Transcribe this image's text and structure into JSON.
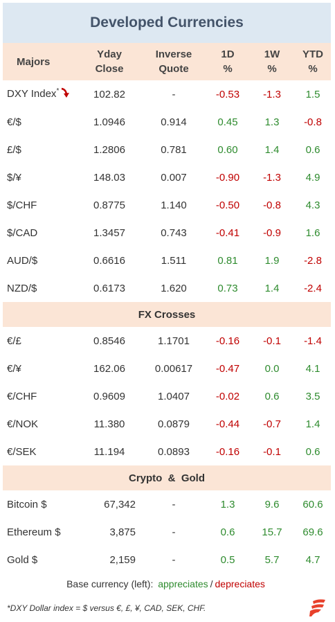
{
  "title": "Developed Currencies",
  "headers": {
    "majors": "Majors",
    "yday_1": "Yday",
    "yday_2": "Close",
    "inverse_1": "Inverse",
    "inverse_2": "Quote",
    "d1_1": "1D",
    "d1_2": "%",
    "w1_1": "1W",
    "w1_2": "%",
    "ytd_1": "YTD",
    "ytd_2": "%"
  },
  "majors": [
    {
      "name": "DXY Index",
      "close": "102.82",
      "inverse": "-",
      "d1": "-0.53",
      "w1": "-1.3",
      "ytd": "1.5"
    },
    {
      "name": "€/$",
      "close": "1.0946",
      "inverse": "0.914",
      "d1": "0.45",
      "w1": "1.3",
      "ytd": "-0.8"
    },
    {
      "name": "£/$",
      "close": "1.2806",
      "inverse": "0.781",
      "d1": "0.60",
      "w1": "1.4",
      "ytd": "0.6"
    },
    {
      "name": "$/¥",
      "close": "148.03",
      "inverse": "0.007",
      "d1": "-0.90",
      "w1": "-1.3",
      "ytd": "4.9"
    },
    {
      "name": "$/CHF",
      "close": "0.8775",
      "inverse": "1.140",
      "d1": "-0.50",
      "w1": "-0.8",
      "ytd": "4.3"
    },
    {
      "name": "$/CAD",
      "close": "1.3457",
      "inverse": "0.743",
      "d1": "-0.41",
      "w1": "-0.9",
      "ytd": "1.6"
    },
    {
      "name": "AUD/$",
      "close": "0.6616",
      "inverse": "1.511",
      "d1": "0.81",
      "w1": "1.9",
      "ytd": "-2.8"
    },
    {
      "name": "NZD/$",
      "close": "0.6173",
      "inverse": "1.620",
      "d1": "0.73",
      "w1": "1.4",
      "ytd": "-2.4"
    }
  ],
  "fx_title": "FX Crosses",
  "fx": [
    {
      "name": "€/£",
      "close": "0.8546",
      "inverse": "1.1701",
      "d1": "-0.16",
      "w1": "-0.1",
      "ytd": "-1.4"
    },
    {
      "name": "€/¥",
      "close": "162.06",
      "inverse": "0.00617",
      "d1": "-0.47",
      "w1": "0.0",
      "ytd": "4.1"
    },
    {
      "name": "€/CHF",
      "close": "0.9609",
      "inverse": "1.0407",
      "d1": "-0.02",
      "w1": "0.6",
      "ytd": "3.5"
    },
    {
      "name": "€/NOK",
      "close": "11.380",
      "inverse": "0.0879",
      "d1": "-0.44",
      "w1": "-0.7",
      "ytd": "1.4"
    },
    {
      "name": "€/SEK",
      "close": "11.194",
      "inverse": "0.0893",
      "d1": "-0.16",
      "w1": "-0.1",
      "ytd": "0.6"
    }
  ],
  "crypto_title": "Crypto  &  Gold",
  "crypto": [
    {
      "name": "Bitcoin $",
      "close": "67,342",
      "inverse": "-",
      "d1": "1.3",
      "w1": "9.6",
      "ytd": "60.6"
    },
    {
      "name": "Ethereum $",
      "close": "3,875",
      "inverse": "-",
      "d1": "0.6",
      "w1": "15.7",
      "ytd": "69.6"
    },
    {
      "name": "Gold $",
      "close": "2,159",
      "inverse": "-",
      "d1": "0.5",
      "w1": "5.7",
      "ytd": "4.7"
    }
  ],
  "legend": {
    "prefix": "Base currency (left):",
    "appreciates": "appreciates",
    "sep": "/",
    "depreciates": "depreciates"
  },
  "footnote": "*DXY Dollar index = $ versus €, £, ¥, CAD, SEK, CHF.",
  "dxy_star": "*",
  "colors": {
    "positive": "#2e8b2e",
    "negative": "#c00000",
    "title_bg": "#dde8f2",
    "header_bg": "#fbe5d6",
    "accent": "#e8412c"
  },
  "icons": {
    "dxy_arrow": "down-arrow-icon",
    "logo": "brand-logo-icon"
  }
}
